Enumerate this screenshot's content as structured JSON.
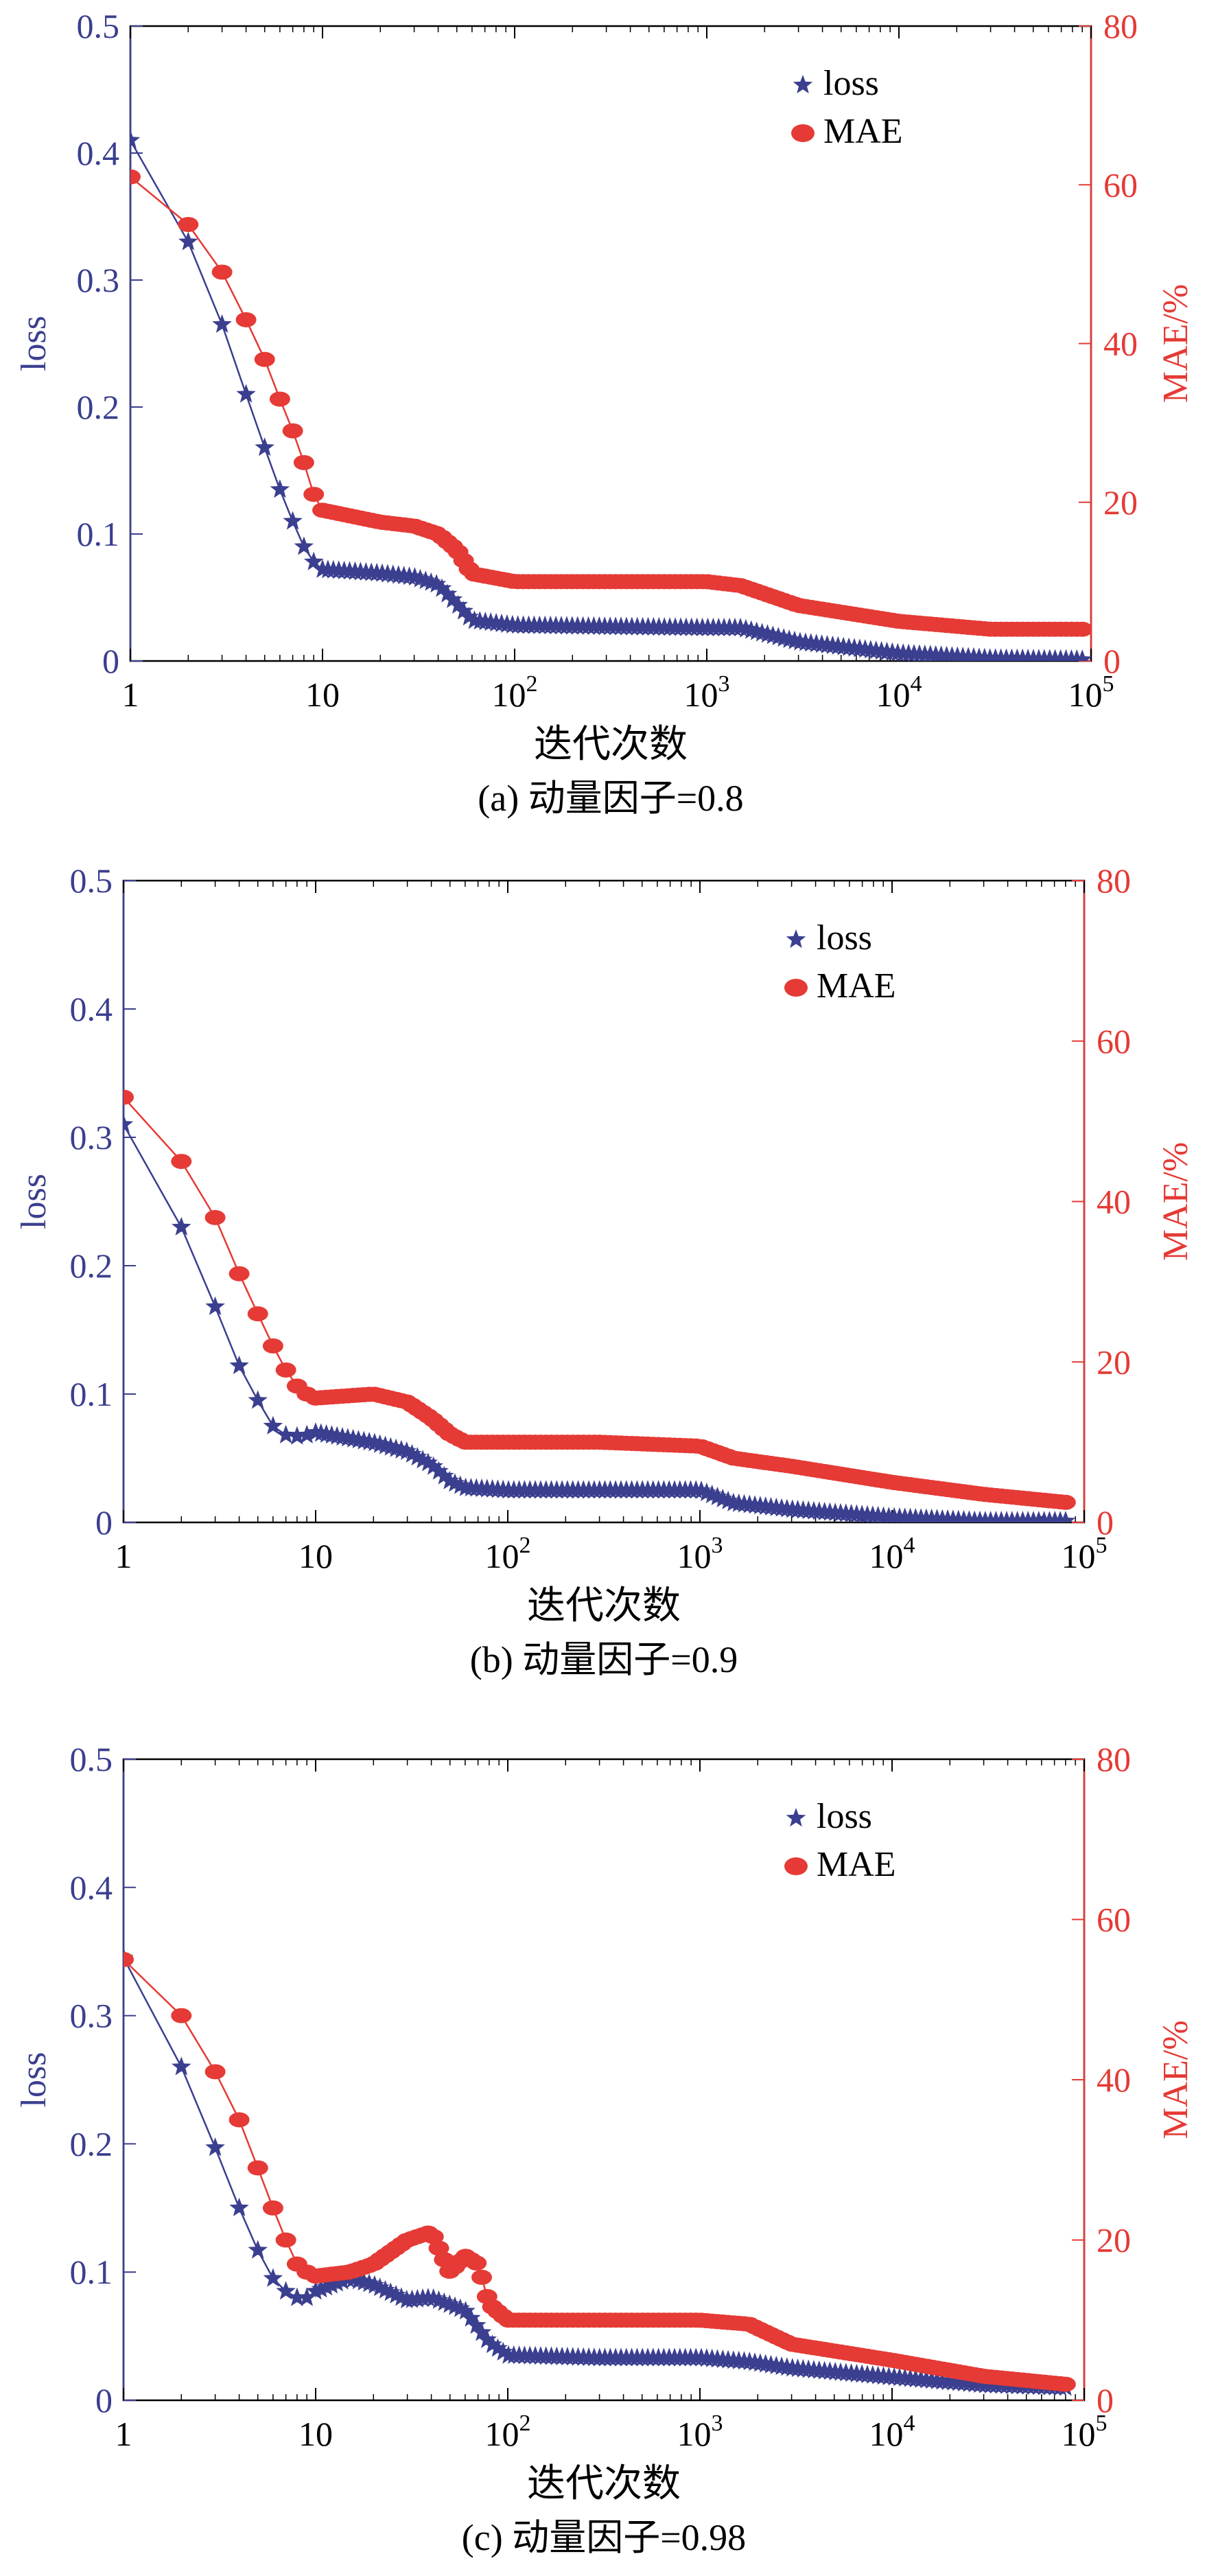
{
  "colors": {
    "loss": "#3b3f8f",
    "mae": "#e53a35",
    "axis": "#000000"
  },
  "chart_data": [
    {
      "type": "line",
      "caption": "(a) 动量因子=0.8",
      "xlabel": "迭代次数",
      "ylabel": "loss",
      "y2label": "MAE/%",
      "xscale": "log",
      "xlim": [
        1,
        100000
      ],
      "ylim": [
        0,
        0.5
      ],
      "y2lim": [
        0,
        80
      ],
      "x_ticks": [
        {
          "base": "1",
          "exp": ""
        },
        {
          "base": "10",
          "exp": ""
        },
        {
          "base": "10",
          "exp": "2"
        },
        {
          "base": "10",
          "exp": "3"
        },
        {
          "base": "10",
          "exp": "4"
        },
        {
          "base": "10",
          "exp": "5"
        }
      ],
      "y_ticks": [
        "0",
        "0.1",
        "0.2",
        "0.3",
        "0.4",
        "0.5"
      ],
      "y2_ticks": [
        "0",
        "20",
        "40",
        "60",
        "80"
      ],
      "legend": [
        "loss",
        "MAE"
      ],
      "series": [
        {
          "name": "loss",
          "axis": "left",
          "x": [
            1,
            2,
            3,
            4,
            5,
            6,
            7,
            8,
            9,
            10,
            20,
            30,
            40,
            50,
            60,
            100,
            300,
            1000,
            1500,
            3000,
            10000,
            30000,
            90000
          ],
          "values": [
            0.41,
            0.33,
            0.265,
            0.21,
            0.168,
            0.135,
            0.11,
            0.09,
            0.078,
            0.072,
            0.069,
            0.066,
            0.06,
            0.045,
            0.032,
            0.028,
            0.027,
            0.026,
            0.026,
            0.015,
            0.006,
            0.002,
            0.001
          ]
        },
        {
          "name": "MAE",
          "axis": "right",
          "x": [
            1,
            2,
            3,
            4,
            5,
            6,
            7,
            8,
            9,
            10,
            20,
            30,
            40,
            50,
            60,
            100,
            300,
            1000,
            1500,
            3000,
            10000,
            30000,
            90000
          ],
          "values": [
            61,
            55,
            49,
            43,
            38,
            33,
            29,
            25,
            21,
            19,
            17.5,
            17,
            16,
            14,
            11,
            10,
            10,
            10,
            9.5,
            7,
            5,
            4,
            4
          ]
        }
      ]
    },
    {
      "type": "line",
      "caption": "(b) 动量因子=0.9",
      "xlabel": "迭代次数",
      "ylabel": "loss",
      "y2label": "MAE/%",
      "xscale": "log",
      "xlim": [
        1,
        100000
      ],
      "ylim": [
        0,
        0.5
      ],
      "y2lim": [
        0,
        80
      ],
      "x_ticks": [
        {
          "base": "1",
          "exp": ""
        },
        {
          "base": "10",
          "exp": ""
        },
        {
          "base": "10",
          "exp": "2"
        },
        {
          "base": "10",
          "exp": "3"
        },
        {
          "base": "10",
          "exp": "4"
        },
        {
          "base": "10",
          "exp": "5"
        }
      ],
      "y_ticks": [
        "0",
        "0.1",
        "0.2",
        "0.3",
        "0.4",
        "0.5"
      ],
      "y2_ticks": [
        "0",
        "20",
        "40",
        "60",
        "80"
      ],
      "legend": [
        "loss",
        "MAE"
      ],
      "series": [
        {
          "name": "loss",
          "axis": "left",
          "x": [
            1,
            2,
            3,
            4,
            5,
            6,
            7,
            8,
            9,
            10,
            20,
            30,
            40,
            50,
            60,
            100,
            300,
            1000,
            1500,
            3000,
            10000,
            30000,
            80000
          ],
          "values": [
            0.31,
            0.23,
            0.168,
            0.122,
            0.095,
            0.075,
            0.068,
            0.067,
            0.068,
            0.07,
            0.062,
            0.055,
            0.045,
            0.032,
            0.027,
            0.025,
            0.025,
            0.025,
            0.015,
            0.01,
            0.004,
            0.001,
            0.001
          ]
        },
        {
          "name": "MAE",
          "axis": "right",
          "x": [
            1,
            2,
            3,
            4,
            5,
            6,
            7,
            8,
            9,
            10,
            20,
            30,
            40,
            50,
            60,
            100,
            300,
            1000,
            1500,
            3000,
            10000,
            30000,
            80000
          ],
          "values": [
            53,
            45,
            38,
            31,
            26,
            22,
            19,
            17,
            16,
            15.5,
            16,
            15,
            13,
            11,
            10,
            10,
            10,
            9.5,
            8,
            7,
            5,
            3.5,
            2.5
          ]
        }
      ]
    },
    {
      "type": "line",
      "caption": "(c) 动量因子=0.98",
      "xlabel": "迭代次数",
      "ylabel": "loss",
      "y2label": "MAE/%",
      "xscale": "log",
      "xlim": [
        1,
        100000
      ],
      "ylim": [
        0,
        0.5
      ],
      "y2lim": [
        0,
        80
      ],
      "x_ticks": [
        {
          "base": "1",
          "exp": ""
        },
        {
          "base": "10",
          "exp": ""
        },
        {
          "base": "10",
          "exp": "2"
        },
        {
          "base": "10",
          "exp": "3"
        },
        {
          "base": "10",
          "exp": "4"
        },
        {
          "base": "10",
          "exp": "5"
        }
      ],
      "y_ticks": [
        "0",
        "0.1",
        "0.2",
        "0.3",
        "0.4",
        "0.5"
      ],
      "y2_ticks": [
        "0",
        "20",
        "40",
        "60",
        "80"
      ],
      "legend": [
        "loss",
        "MAE"
      ],
      "series": [
        {
          "name": "loss",
          "axis": "left",
          "x": [
            1,
            2,
            3,
            4,
            5,
            6,
            7,
            8,
            9,
            10,
            15,
            20,
            30,
            40,
            60,
            80,
            100,
            300,
            1000,
            1800,
            3000,
            10000,
            30000,
            80000
          ],
          "values": [
            0.345,
            0.26,
            0.197,
            0.15,
            0.117,
            0.095,
            0.085,
            0.08,
            0.08,
            0.085,
            0.095,
            0.09,
            0.078,
            0.08,
            0.07,
            0.045,
            0.035,
            0.033,
            0.033,
            0.03,
            0.025,
            0.018,
            0.012,
            0.01
          ]
        },
        {
          "name": "MAE",
          "axis": "right",
          "x": [
            1,
            2,
            3,
            4,
            5,
            6,
            7,
            8,
            9,
            10,
            15,
            20,
            30,
            40,
            50,
            60,
            70,
            80,
            100,
            300,
            1000,
            1800,
            3000,
            10000,
            30000,
            80000
          ],
          "values": [
            55,
            48,
            41,
            35,
            29,
            24,
            20,
            17,
            16,
            15.5,
            16,
            17,
            20,
            21,
            16,
            18,
            17,
            12,
            10,
            10,
            10,
            9.5,
            7,
            5,
            3,
            2
          ]
        }
      ]
    }
  ]
}
